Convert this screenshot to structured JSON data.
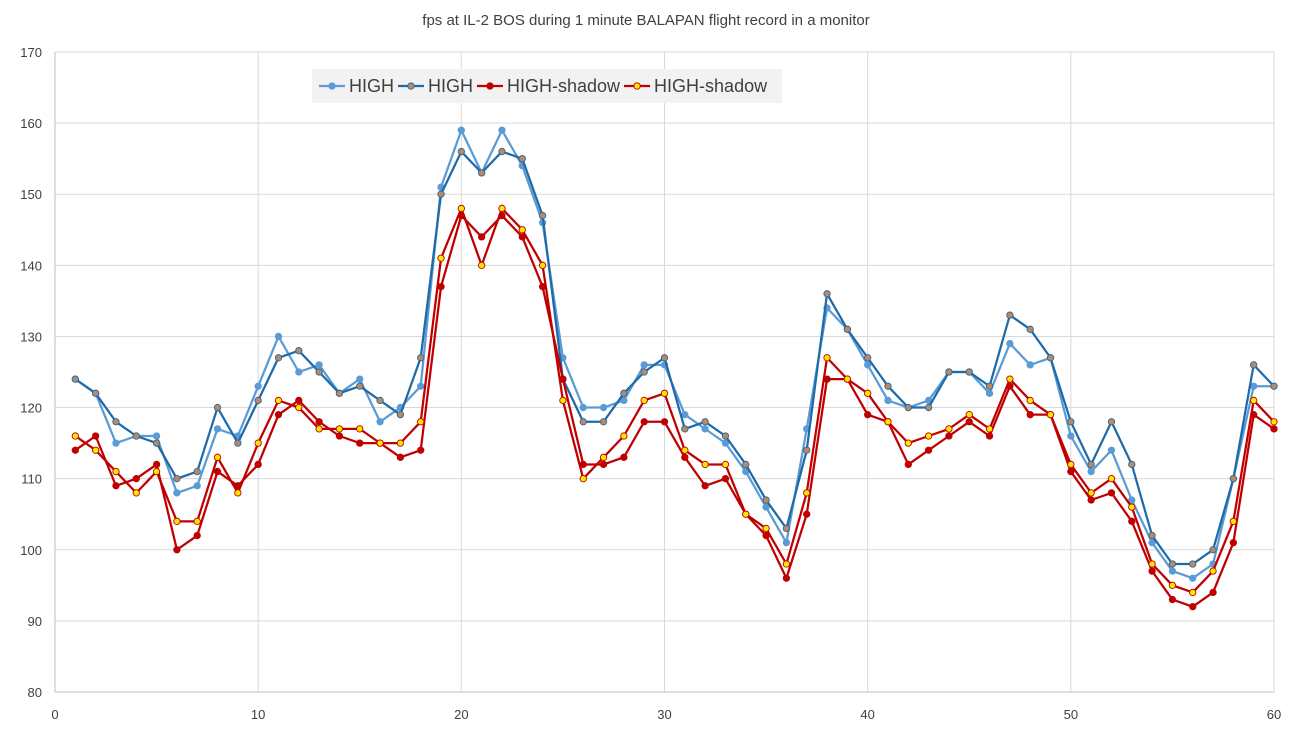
{
  "chart_data": {
    "type": "line",
    "title": "fps at IL-2 BOS during 1 minute BALAPAN flight record in a monitor",
    "xlabel": "",
    "ylabel": "",
    "xlim": [
      0,
      60
    ],
    "ylim": [
      80,
      170
    ],
    "xticks": [
      0,
      10,
      20,
      30,
      40,
      50,
      60
    ],
    "yticks": [
      80,
      90,
      100,
      110,
      120,
      130,
      140,
      150,
      160,
      170
    ],
    "grid": true,
    "legend_position": "top-left",
    "x": [
      1,
      2,
      3,
      4,
      5,
      6,
      7,
      8,
      9,
      10,
      11,
      12,
      13,
      14,
      15,
      16,
      17,
      18,
      19,
      20,
      21,
      22,
      23,
      24,
      25,
      26,
      27,
      28,
      29,
      30,
      31,
      32,
      33,
      34,
      35,
      36,
      37,
      38,
      39,
      40,
      41,
      42,
      43,
      44,
      45,
      46,
      47,
      48,
      49,
      50,
      51,
      52,
      53,
      54,
      55,
      56,
      57,
      58,
      59,
      60
    ],
    "series": [
      {
        "name": "HIGH",
        "line_color": "#5b9bd5",
        "marker_fill": "#5b9bd5",
        "marker_edge": "#5b9bd5",
        "values": [
          124,
          122,
          115,
          116,
          116,
          108,
          109,
          117,
          116,
          123,
          130,
          125,
          126,
          122,
          124,
          118,
          120,
          123,
          151,
          159,
          153,
          159,
          154,
          146,
          127,
          120,
          120,
          121,
          126,
          126,
          119,
          117,
          115,
          111,
          106,
          101,
          117,
          134,
          131,
          126,
          121,
          120,
          121,
          125,
          125,
          122,
          129,
          126,
          127,
          116,
          111,
          114,
          107,
          101,
          97,
          96,
          98,
          110,
          123,
          123
        ]
      },
      {
        "name": "HIGH",
        "line_color": "#1f6aa8",
        "marker_fill": "#c0885a",
        "marker_edge": "#1f6aa8",
        "values": [
          124,
          122,
          118,
          116,
          115,
          110,
          111,
          120,
          115,
          121,
          127,
          128,
          125,
          122,
          123,
          121,
          119,
          127,
          150,
          156,
          153,
          156,
          155,
          147,
          124,
          118,
          118,
          122,
          125,
          127,
          117,
          118,
          116,
          112,
          107,
          103,
          114,
          136,
          131,
          127,
          123,
          120,
          120,
          125,
          125,
          123,
          133,
          131,
          127,
          118,
          112,
          118,
          112,
          102,
          98,
          98,
          100,
          110,
          126,
          123
        ]
      },
      {
        "name": "HIGH-shadow",
        "line_color": "#c00000",
        "marker_fill": "#c00000",
        "marker_edge": "#c00000",
        "values": [
          114,
          116,
          109,
          110,
          112,
          100,
          102,
          111,
          109,
          112,
          119,
          121,
          118,
          116,
          115,
          115,
          113,
          114,
          137,
          147,
          144,
          147,
          144,
          137,
          124,
          112,
          112,
          113,
          118,
          118,
          113,
          109,
          110,
          105,
          102,
          96,
          105,
          124,
          124,
          119,
          118,
          112,
          114,
          116,
          118,
          116,
          123,
          119,
          119,
          111,
          107,
          108,
          104,
          97,
          93,
          92,
          94,
          101,
          119,
          117
        ]
      },
      {
        "name": "HIGH-shadow",
        "line_color": "#c00000",
        "marker_fill": "#ffe800",
        "marker_edge": "#c00000",
        "values": [
          116,
          114,
          111,
          108,
          111,
          104,
          104,
          113,
          108,
          115,
          121,
          120,
          117,
          117,
          117,
          115,
          115,
          118,
          141,
          148,
          140,
          148,
          145,
          140,
          121,
          110,
          113,
          116,
          121,
          122,
          114,
          112,
          112,
          105,
          103,
          98,
          108,
          127,
          124,
          122,
          118,
          115,
          116,
          117,
          119,
          117,
          124,
          121,
          119,
          112,
          108,
          110,
          106,
          98,
          95,
          94,
          97,
          104,
          121,
          118
        ]
      }
    ]
  }
}
